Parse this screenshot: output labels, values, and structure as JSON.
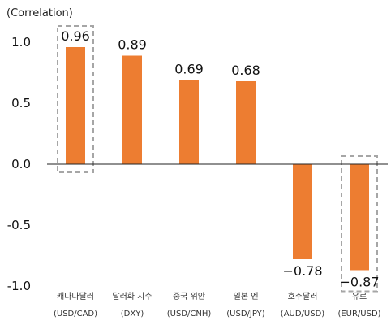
{
  "chart_data": {
    "type": "bar",
    "ylabel": "(Correlation)",
    "ylim": [
      -1.0,
      1.0
    ],
    "yticks": [
      "1.0",
      "0.5",
      "0.0",
      "-0.5",
      "-1.0"
    ],
    "ytick_values": [
      1.0,
      0.5,
      0.0,
      -0.5,
      -1.0
    ],
    "categories": [
      {
        "line1": "캐나다달러",
        "line2": "(USD/CAD)"
      },
      {
        "line1": "달러화  지수",
        "line2": "(DXY)"
      },
      {
        "line1": "중국  위안",
        "line2": "(USD/CNH)"
      },
      {
        "line1": "일본  엔",
        "line2": "(USD/JPY)"
      },
      {
        "line1": "호주달러",
        "line2": "(AUD/USD)"
      },
      {
        "line1": "유로",
        "line2": "(EUR/USD)"
      }
    ],
    "values": [
      0.96,
      0.89,
      0.69,
      0.68,
      -0.78,
      -0.87
    ],
    "value_labels": [
      "0.96",
      "0.89",
      "0.69",
      "0.68",
      "−0.78",
      "−0.87"
    ],
    "highlighted": [
      0,
      5
    ],
    "bar_color": "#ED7D31",
    "highlight_box_color": "#A6A6A6"
  }
}
